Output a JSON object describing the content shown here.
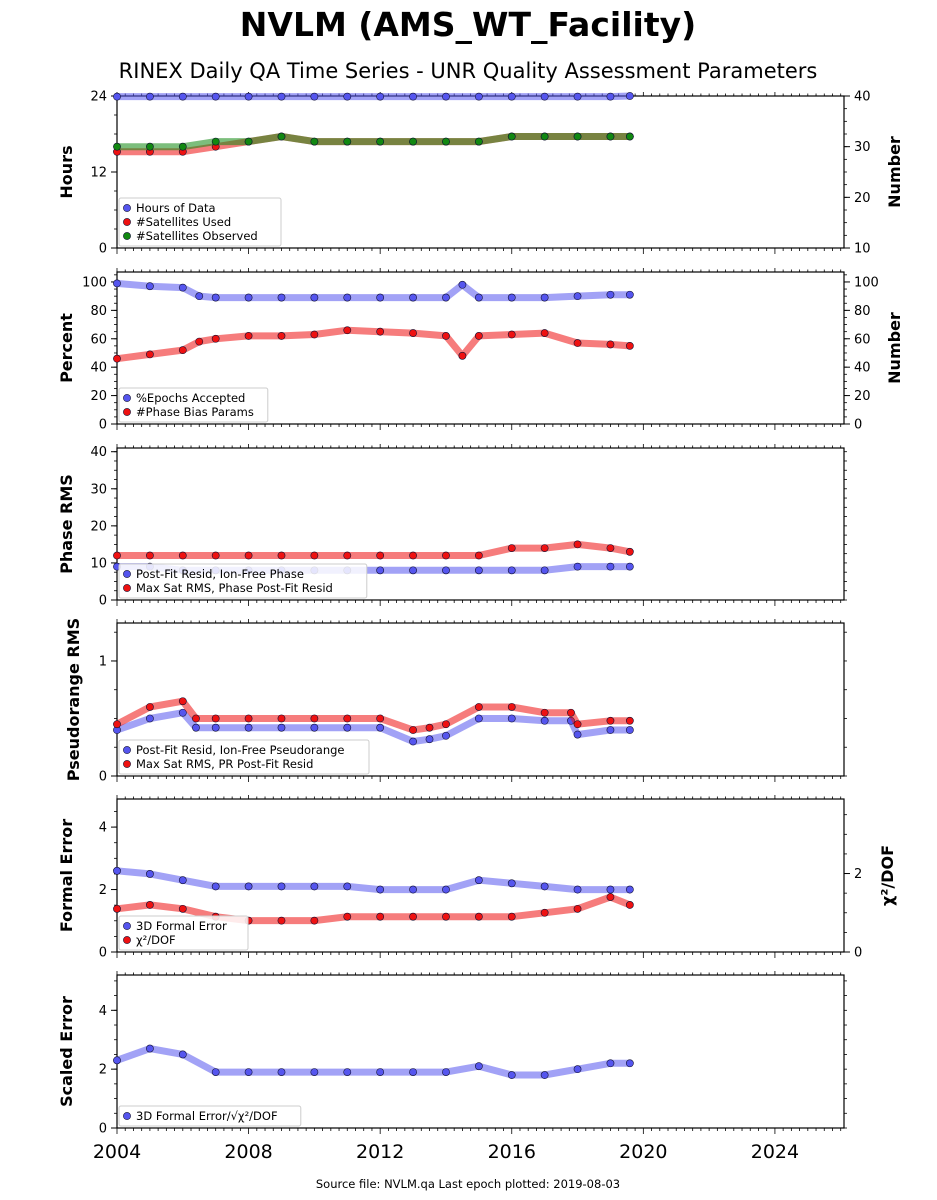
{
  "title": "NVLM (AMS_WT_Facility)",
  "subtitle": "RINEX Daily QA Time Series - UNR Quality Assessment Parameters",
  "footer": "Source file: NVLM.qa Last epoch plotted: 2019-08-03",
  "colors": {
    "blue": "#5555ee",
    "red": "#ee1111",
    "green": "#118811",
    "edge": "#111133"
  },
  "chart_data": [
    {
      "type": "scatter",
      "ylabel": "Hours",
      "ylabel_right": "Number",
      "ylim": [
        0,
        24
      ],
      "yticks": [
        0,
        12,
        24
      ],
      "ylim_right": [
        10,
        40
      ],
      "yticks_right": [
        10,
        20,
        30,
        40
      ],
      "legend": "bottom-left",
      "series": [
        {
          "name": "Hours of Data",
          "axis": "left",
          "color": "blue",
          "x": [
            2004.0,
            2005.0,
            2006.0,
            2007.0,
            2008.0,
            2009.0,
            2010.0,
            2011.0,
            2012.0,
            2013.0,
            2014.0,
            2015.0,
            2016.0,
            2017.0,
            2018.0,
            2019.0,
            2019.59
          ],
          "y": [
            23.9,
            23.9,
            23.9,
            23.9,
            23.9,
            23.9,
            23.9,
            23.9,
            23.9,
            23.9,
            23.9,
            23.9,
            23.9,
            23.9,
            23.9,
            23.9,
            24.0
          ]
        },
        {
          "name": "#Satellites Used",
          "axis": "right",
          "color": "red",
          "x": [
            2004.0,
            2005.0,
            2006.0,
            2007.0,
            2008.0,
            2009.0,
            2010.0,
            2011.0,
            2012.0,
            2013.0,
            2014.0,
            2015.0,
            2016.0,
            2017.0,
            2018.0,
            2019.0,
            2019.59
          ],
          "y": [
            29,
            29,
            29,
            30,
            31,
            32,
            31,
            31,
            31,
            31,
            31,
            31,
            32,
            32,
            32,
            32,
            32
          ]
        },
        {
          "name": "#Satellites Observed",
          "axis": "right",
          "color": "green",
          "x": [
            2004.0,
            2005.0,
            2006.0,
            2007.0,
            2008.0,
            2009.0,
            2010.0,
            2011.0,
            2012.0,
            2013.0,
            2014.0,
            2015.0,
            2016.0,
            2017.0,
            2018.0,
            2019.0,
            2019.59
          ],
          "y": [
            30,
            30,
            30,
            31,
            31,
            32,
            31,
            31,
            31,
            31,
            31,
            31,
            32,
            32,
            32,
            32,
            32
          ]
        }
      ]
    },
    {
      "type": "scatter",
      "ylabel": "Percent",
      "ylabel_right": "Number",
      "ylim": [
        0,
        107
      ],
      "yticks": [
        0,
        20,
        40,
        60,
        80,
        100
      ],
      "ylim_right": [
        0,
        107
      ],
      "yticks_right": [
        0,
        20,
        40,
        60,
        80,
        100
      ],
      "legend": "bottom-left",
      "series": [
        {
          "name": "%Epochs Accepted",
          "axis": "left",
          "color": "blue",
          "x": [
            2004.0,
            2005.0,
            2006.0,
            2006.5,
            2007.0,
            2008.0,
            2009.0,
            2010.0,
            2011.0,
            2012.0,
            2013.0,
            2014.0,
            2014.5,
            2015.0,
            2016.0,
            2017.0,
            2018.0,
            2019.0,
            2019.59
          ],
          "y": [
            99,
            97,
            96,
            90,
            89,
            89,
            89,
            89,
            89,
            89,
            89,
            89,
            98,
            89,
            89,
            89,
            90,
            91,
            91
          ]
        },
        {
          "name": "#Phase Bias Params",
          "axis": "right",
          "color": "red",
          "x": [
            2004.0,
            2005.0,
            2006.0,
            2006.5,
            2007.0,
            2008.0,
            2009.0,
            2010.0,
            2011.0,
            2012.0,
            2013.0,
            2014.0,
            2014.5,
            2015.0,
            2016.0,
            2017.0,
            2018.0,
            2019.0,
            2019.59
          ],
          "y": [
            46,
            49,
            52,
            58,
            60,
            62,
            62,
            63,
            66,
            65,
            64,
            62,
            48,
            62,
            63,
            64,
            57,
            56,
            55
          ]
        }
      ]
    },
    {
      "type": "scatter",
      "ylabel": "Phase RMS",
      "ylim": [
        0,
        41
      ],
      "yticks": [
        0,
        10,
        20,
        30,
        40
      ],
      "legend": "bottom-left",
      "series": [
        {
          "name": "Post-Fit Resid, Ion-Free Phase",
          "axis": "left",
          "color": "blue",
          "x": [
            2004.0,
            2005.0,
            2006.0,
            2007.0,
            2008.0,
            2009.0,
            2010.0,
            2011.0,
            2012.0,
            2013.0,
            2014.0,
            2015.0,
            2016.0,
            2017.0,
            2018.0,
            2019.0,
            2019.59
          ],
          "y": [
            9,
            9,
            8,
            8,
            8,
            8,
            8,
            8,
            8,
            8,
            8,
            8,
            8,
            8,
            9,
            9,
            9
          ]
        },
        {
          "name": "Max Sat RMS, Phase Post-Fit Resid",
          "axis": "left",
          "color": "red",
          "x": [
            2004.0,
            2005.0,
            2006.0,
            2007.0,
            2008.0,
            2009.0,
            2010.0,
            2011.0,
            2012.0,
            2013.0,
            2014.0,
            2015.0,
            2016.0,
            2017.0,
            2018.0,
            2019.0,
            2019.59
          ],
          "y": [
            12,
            12,
            12,
            12,
            12,
            12,
            12,
            12,
            12,
            12,
            12,
            12,
            14,
            14,
            15,
            14,
            13
          ]
        }
      ]
    },
    {
      "type": "scatter",
      "ylabel": "Pseudorange RMS",
      "ylim": [
        0,
        1.33
      ],
      "yticks": [
        0,
        1
      ],
      "legend": "bottom-left",
      "series": [
        {
          "name": "Post-Fit Resid, Ion-Free Pseudorange",
          "axis": "left",
          "color": "blue",
          "x": [
            2004.0,
            2005.0,
            2006.0,
            2006.4,
            2007.0,
            2008.0,
            2009.0,
            2010.0,
            2011.0,
            2012.0,
            2013.0,
            2013.5,
            2014.0,
            2015.0,
            2016.0,
            2017.0,
            2017.8,
            2018.0,
            2019.0,
            2019.59
          ],
          "y": [
            0.4,
            0.5,
            0.55,
            0.42,
            0.42,
            0.42,
            0.42,
            0.42,
            0.42,
            0.42,
            0.3,
            0.32,
            0.35,
            0.5,
            0.5,
            0.48,
            0.48,
            0.36,
            0.4,
            0.4
          ]
        },
        {
          "name": "Max Sat RMS, PR Post-Fit Resid",
          "axis": "left",
          "color": "red",
          "x": [
            2004.0,
            2005.0,
            2006.0,
            2006.4,
            2007.0,
            2008.0,
            2009.0,
            2010.0,
            2011.0,
            2012.0,
            2013.0,
            2013.5,
            2014.0,
            2015.0,
            2016.0,
            2017.0,
            2017.8,
            2018.0,
            2019.0,
            2019.59
          ],
          "y": [
            0.45,
            0.6,
            0.65,
            0.5,
            0.5,
            0.5,
            0.5,
            0.5,
            0.5,
            0.5,
            0.4,
            0.42,
            0.45,
            0.6,
            0.6,
            0.55,
            0.55,
            0.45,
            0.48,
            0.48
          ]
        }
      ]
    },
    {
      "type": "scatter",
      "ylabel": "Formal Error",
      "ylabel_right": "χ²/DOF",
      "ylim": [
        0,
        4.9
      ],
      "yticks": [
        0,
        2,
        4
      ],
      "ylim_right": [
        0,
        3.9
      ],
      "yticks_right": [
        0,
        2
      ],
      "legend": "bottom-left",
      "series": [
        {
          "name": "3D Formal Error",
          "axis": "left",
          "color": "blue",
          "x": [
            2004.0,
            2005.0,
            2006.0,
            2007.0,
            2008.0,
            2009.0,
            2010.0,
            2011.0,
            2012.0,
            2013.0,
            2014.0,
            2015.0,
            2016.0,
            2017.0,
            2018.0,
            2019.0,
            2019.59
          ],
          "y": [
            2.6,
            2.5,
            2.3,
            2.1,
            2.1,
            2.1,
            2.1,
            2.1,
            2.0,
            2.0,
            2.0,
            2.3,
            2.2,
            2.1,
            2.0,
            2.0,
            2.0
          ]
        },
        {
          "name": "χ²/DOF",
          "axis": "right",
          "color": "red",
          "x": [
            2004.0,
            2005.0,
            2006.0,
            2007.0,
            2008.0,
            2009.0,
            2010.0,
            2011.0,
            2012.0,
            2013.0,
            2014.0,
            2015.0,
            2016.0,
            2017.0,
            2018.0,
            2019.0,
            2019.59
          ],
          "y": [
            1.1,
            1.2,
            1.1,
            0.9,
            0.8,
            0.8,
            0.8,
            0.9,
            0.9,
            0.9,
            0.9,
            0.9,
            0.9,
            1.0,
            1.1,
            1.4,
            1.2
          ]
        }
      ]
    },
    {
      "type": "scatter",
      "ylabel": "Scaled Error",
      "ylim": [
        0,
        5.2
      ],
      "yticks": [
        0,
        2,
        4
      ],
      "legend": "bottom-left",
      "series": [
        {
          "name": "3D Formal Error/√χ²/DOF",
          "axis": "left",
          "color": "blue",
          "x": [
            2004.0,
            2005.0,
            2006.0,
            2007.0,
            2008.0,
            2009.0,
            2010.0,
            2011.0,
            2012.0,
            2013.0,
            2014.0,
            2015.0,
            2016.0,
            2017.0,
            2018.0,
            2019.0,
            2019.59
          ],
          "y": [
            2.3,
            2.7,
            2.5,
            1.9,
            1.9,
            1.9,
            1.9,
            1.9,
            1.9,
            1.9,
            1.9,
            2.1,
            1.8,
            1.8,
            2.0,
            2.2,
            2.2
          ]
        }
      ]
    }
  ],
  "x_axis": {
    "xlim": [
      2004.0,
      2026.1
    ],
    "ticks": [
      2004,
      2008,
      2012,
      2016,
      2020,
      2024
    ],
    "tick_labels": [
      "2004",
      "2008",
      "2012",
      "2016",
      "2020",
      "2024"
    ]
  }
}
